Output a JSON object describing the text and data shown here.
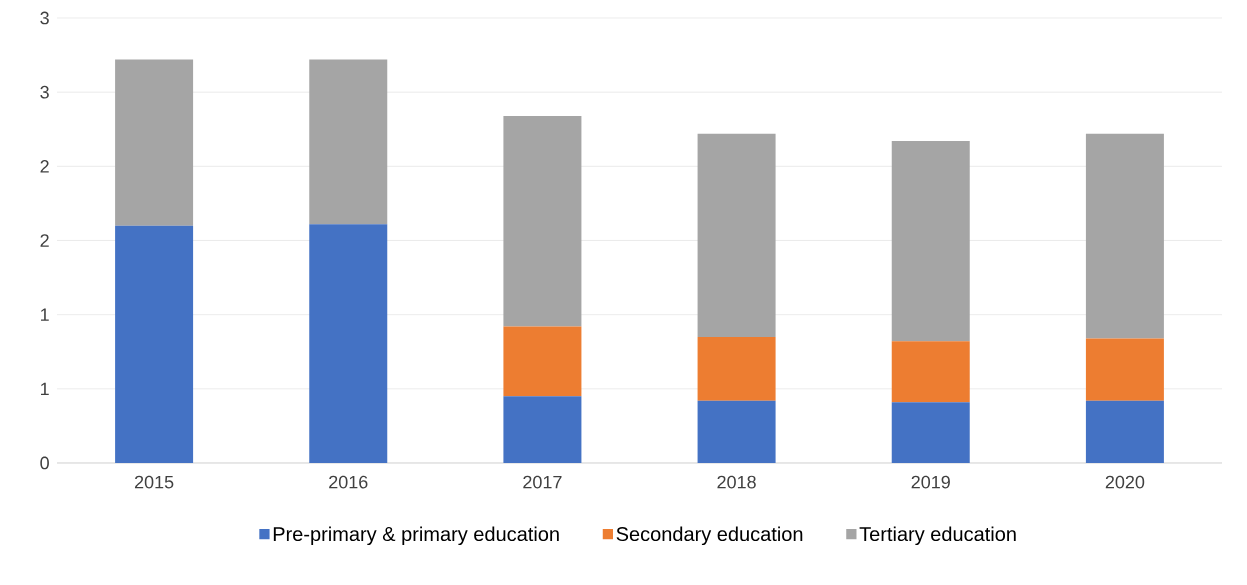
{
  "chart_data": {
    "type": "bar",
    "stacked": true,
    "categories": [
      "2015",
      "2016",
      "2017",
      "2018",
      "2019",
      "2020"
    ],
    "series": [
      {
        "name": "Pre-primary & primary education",
        "color": "#4472c4",
        "values": [
          1.6,
          1.61,
          0.45,
          0.42,
          0.41,
          0.42
        ]
      },
      {
        "name": "Secondary education",
        "color": "#ed7d31",
        "values": [
          0,
          0,
          0.47,
          0.43,
          0.41,
          0.42
        ]
      },
      {
        "name": "Tertiary education",
        "color": "#a5a5a5",
        "values": [
          1.12,
          1.11,
          1.42,
          1.37,
          1.35,
          1.38
        ]
      }
    ],
    "ylim": [
      0,
      3
    ],
    "yticks": [
      0,
      {
        "value": 0.5,
        "label": "1"
      },
      1,
      {
        "value": 1.5,
        "label": "2"
      },
      2,
      {
        "value": 2.5,
        "label": "3"
      },
      3
    ],
    "grid": "y",
    "legend": "bottom"
  }
}
